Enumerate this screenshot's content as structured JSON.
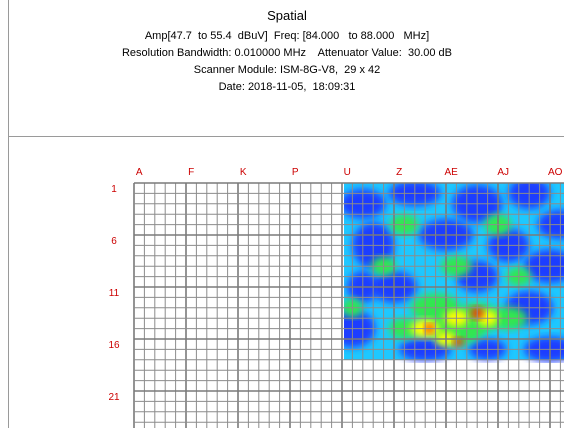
{
  "report": {
    "title": "Spatial",
    "amp_freq": "Amp[47.7  to 55.4  dBuV]  Freq: [84.000   to 88.000   MHz]",
    "rbw_atten": "Resolution Bandwidth: 0.010000 MHz    Attenuator Value:  30.00 dB",
    "scanner": "Scanner Module: ISM-8G-V8,  29 x 42",
    "date": "Date: 2018-11-05,  18:09:31"
  },
  "grid": {
    "column_labels": [
      "A",
      "F",
      "K",
      "P",
      "U",
      "Z",
      "AE",
      "AJ",
      "AO"
    ],
    "row_labels": [
      "1",
      "6",
      "11",
      "16",
      "21"
    ],
    "label_color": "#cc0000",
    "grid_line_color": "#8c8c8c",
    "major_line_color": "#7a7a7a",
    "heatmap_colors": {
      "low": "#1e3cff",
      "mid_low": "#1ec8ff",
      "mid": "#32e650",
      "high": "#ffff00",
      "peak": "#ff2a00"
    }
  }
}
